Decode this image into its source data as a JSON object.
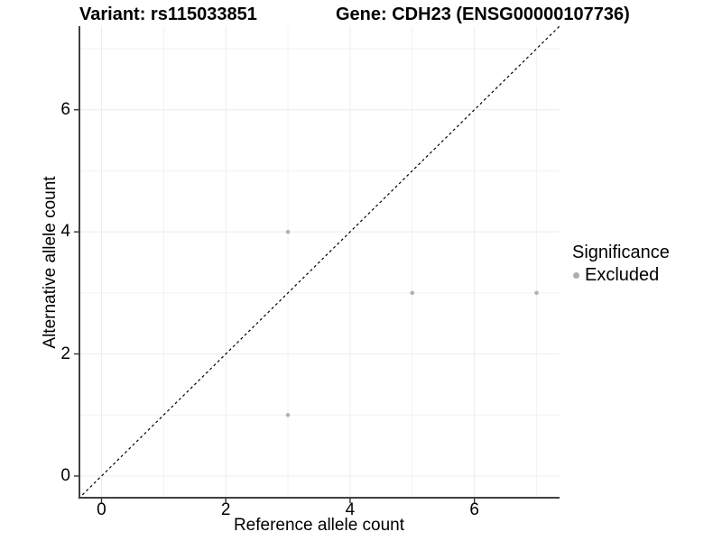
{
  "chart_data": {
    "type": "scatter",
    "title_left": "Variant: rs115033851",
    "title_right": "Gene: CDH23 (ENSG00000107736)",
    "xlabel": "Reference allele count",
    "ylabel": "Alternative allele count",
    "xlim": [
      -0.37,
      7.37
    ],
    "ylim": [
      -0.37,
      7.37
    ],
    "x_ticks": [
      0,
      2,
      4,
      6
    ],
    "y_ticks": [
      0,
      2,
      4,
      6
    ],
    "x_minor": [
      1,
      3,
      5,
      7
    ],
    "y_minor": [
      1,
      3,
      5,
      7
    ],
    "grid": "major+minor",
    "identity_line": {
      "equation": "y = x",
      "style": "dashed",
      "color": "#000000"
    },
    "series": [
      {
        "name": "Excluded",
        "color": "#b3b3b3",
        "points": [
          {
            "x": 3,
            "y": 4
          },
          {
            "x": 3,
            "y": 1
          },
          {
            "x": 5,
            "y": 3
          },
          {
            "x": 7,
            "y": 3
          }
        ]
      }
    ],
    "legend": {
      "title": "Significance",
      "position": "right",
      "items": [
        {
          "label": "Excluded",
          "color": "#aeaeae",
          "marker": "circle"
        }
      ]
    },
    "colors": {
      "background": "#ffffff",
      "grid_major": "#ececec",
      "grid_minor": "#f2f2f2",
      "axis_line": "#404040",
      "tick_mark": "#333333",
      "text": "#000000"
    }
  }
}
